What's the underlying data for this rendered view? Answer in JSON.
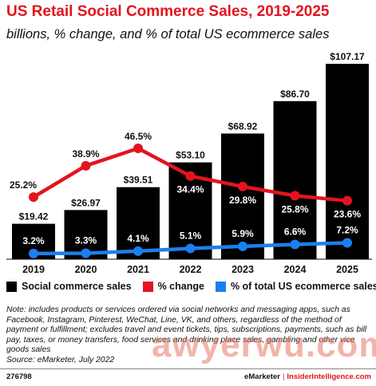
{
  "title": "US Retail Social Commerce Sales, 2019-2025",
  "subtitle": "billions, % change, and % of total US ecommerce sales",
  "chart_data": {
    "type": "bar",
    "categories": [
      "2019",
      "2020",
      "2021",
      "2022",
      "2023",
      "2024",
      "2025"
    ],
    "series": [
      {
        "name": "Social commerce sales",
        "type": "bar",
        "color": "#000000",
        "values": [
          19.42,
          26.97,
          39.51,
          53.1,
          68.92,
          86.7,
          107.17
        ],
        "labels": [
          "$19.42",
          "$26.97",
          "$39.51",
          "$53.10",
          "$68.92",
          "$86.70",
          "$107.17"
        ]
      },
      {
        "name": "% change",
        "type": "line",
        "color": "#e3141d",
        "values": [
          25.2,
          38.9,
          46.5,
          34.4,
          29.8,
          25.8,
          23.6
        ],
        "labels": [
          "25.2%",
          "38.9%",
          "46.5%",
          "34.4%",
          "29.8%",
          "25.8%",
          "23.6%"
        ]
      },
      {
        "name": "% of total US ecommerce sales",
        "type": "line",
        "color": "#1a7ff0",
        "values": [
          3.2,
          3.3,
          4.1,
          5.1,
          5.9,
          6.6,
          7.2
        ],
        "labels": [
          "3.2%",
          "3.3%",
          "4.1%",
          "5.1%",
          "5.9%",
          "6.6%",
          "7.2%"
        ]
      }
    ],
    "grid": false,
    "legend_position": "bottom"
  },
  "legend": [
    {
      "label": "Social commerce sales",
      "color": "#000000"
    },
    {
      "label": "% change",
      "color": "#e3141d"
    },
    {
      "label": "% of total US ecommerce sales",
      "color": "#1a7ff0"
    }
  ],
  "note": "Note: includes products or services ordered via social networks and messaging apps, such as Facebook, Instagram, Pinterest, WeChat, Line, VK, and others, regardless of the method of payment or fulfillment; excludes travel and event tickets, tips, subscriptions, payments, such as bill pay, taxes, or money transfers, food services and drinking place sales, gambling and other vice goods sales",
  "source": "Source: eMarketer, July 2022",
  "footer": {
    "id": "276798",
    "brand": "eMarketer",
    "separator": "|",
    "brand2": "InsiderIntelligence.com"
  },
  "watermark": "awyerwu.com"
}
